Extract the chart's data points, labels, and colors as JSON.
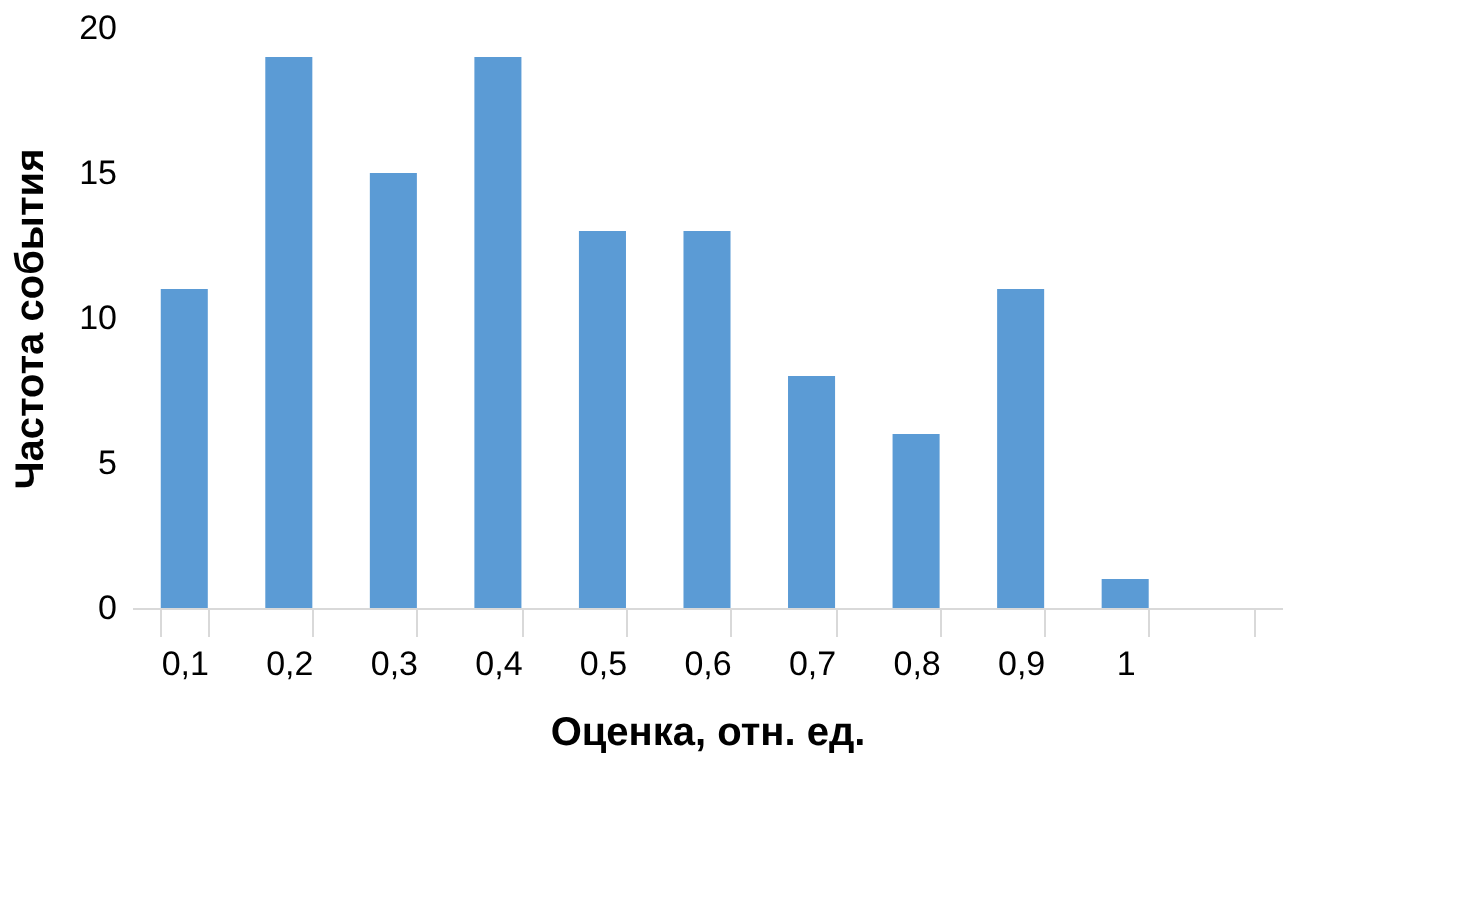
{
  "chart_data": {
    "type": "bar",
    "xlabel": "Оценка, отн. ед.",
    "ylabel": "Частота события",
    "categories": [
      "0,1",
      "0,2",
      "0,3",
      "0,4",
      "0,5",
      "0,6",
      "0,7",
      "0,8",
      "0,9",
      "1",
      null
    ],
    "values": [
      11,
      19,
      15,
      19,
      13,
      13,
      8,
      6,
      11,
      1,
      null
    ],
    "color": "#5b9bd5",
    "ylim": [
      0,
      20
    ],
    "yticks": [
      0,
      5,
      10,
      15,
      20
    ],
    "grid": false
  }
}
